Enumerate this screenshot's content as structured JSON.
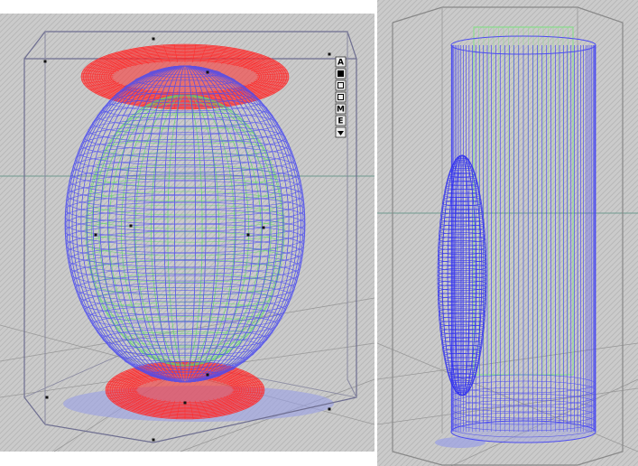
{
  "toolbar": {
    "buttons": [
      "A",
      "M",
      "E"
    ]
  }
}
